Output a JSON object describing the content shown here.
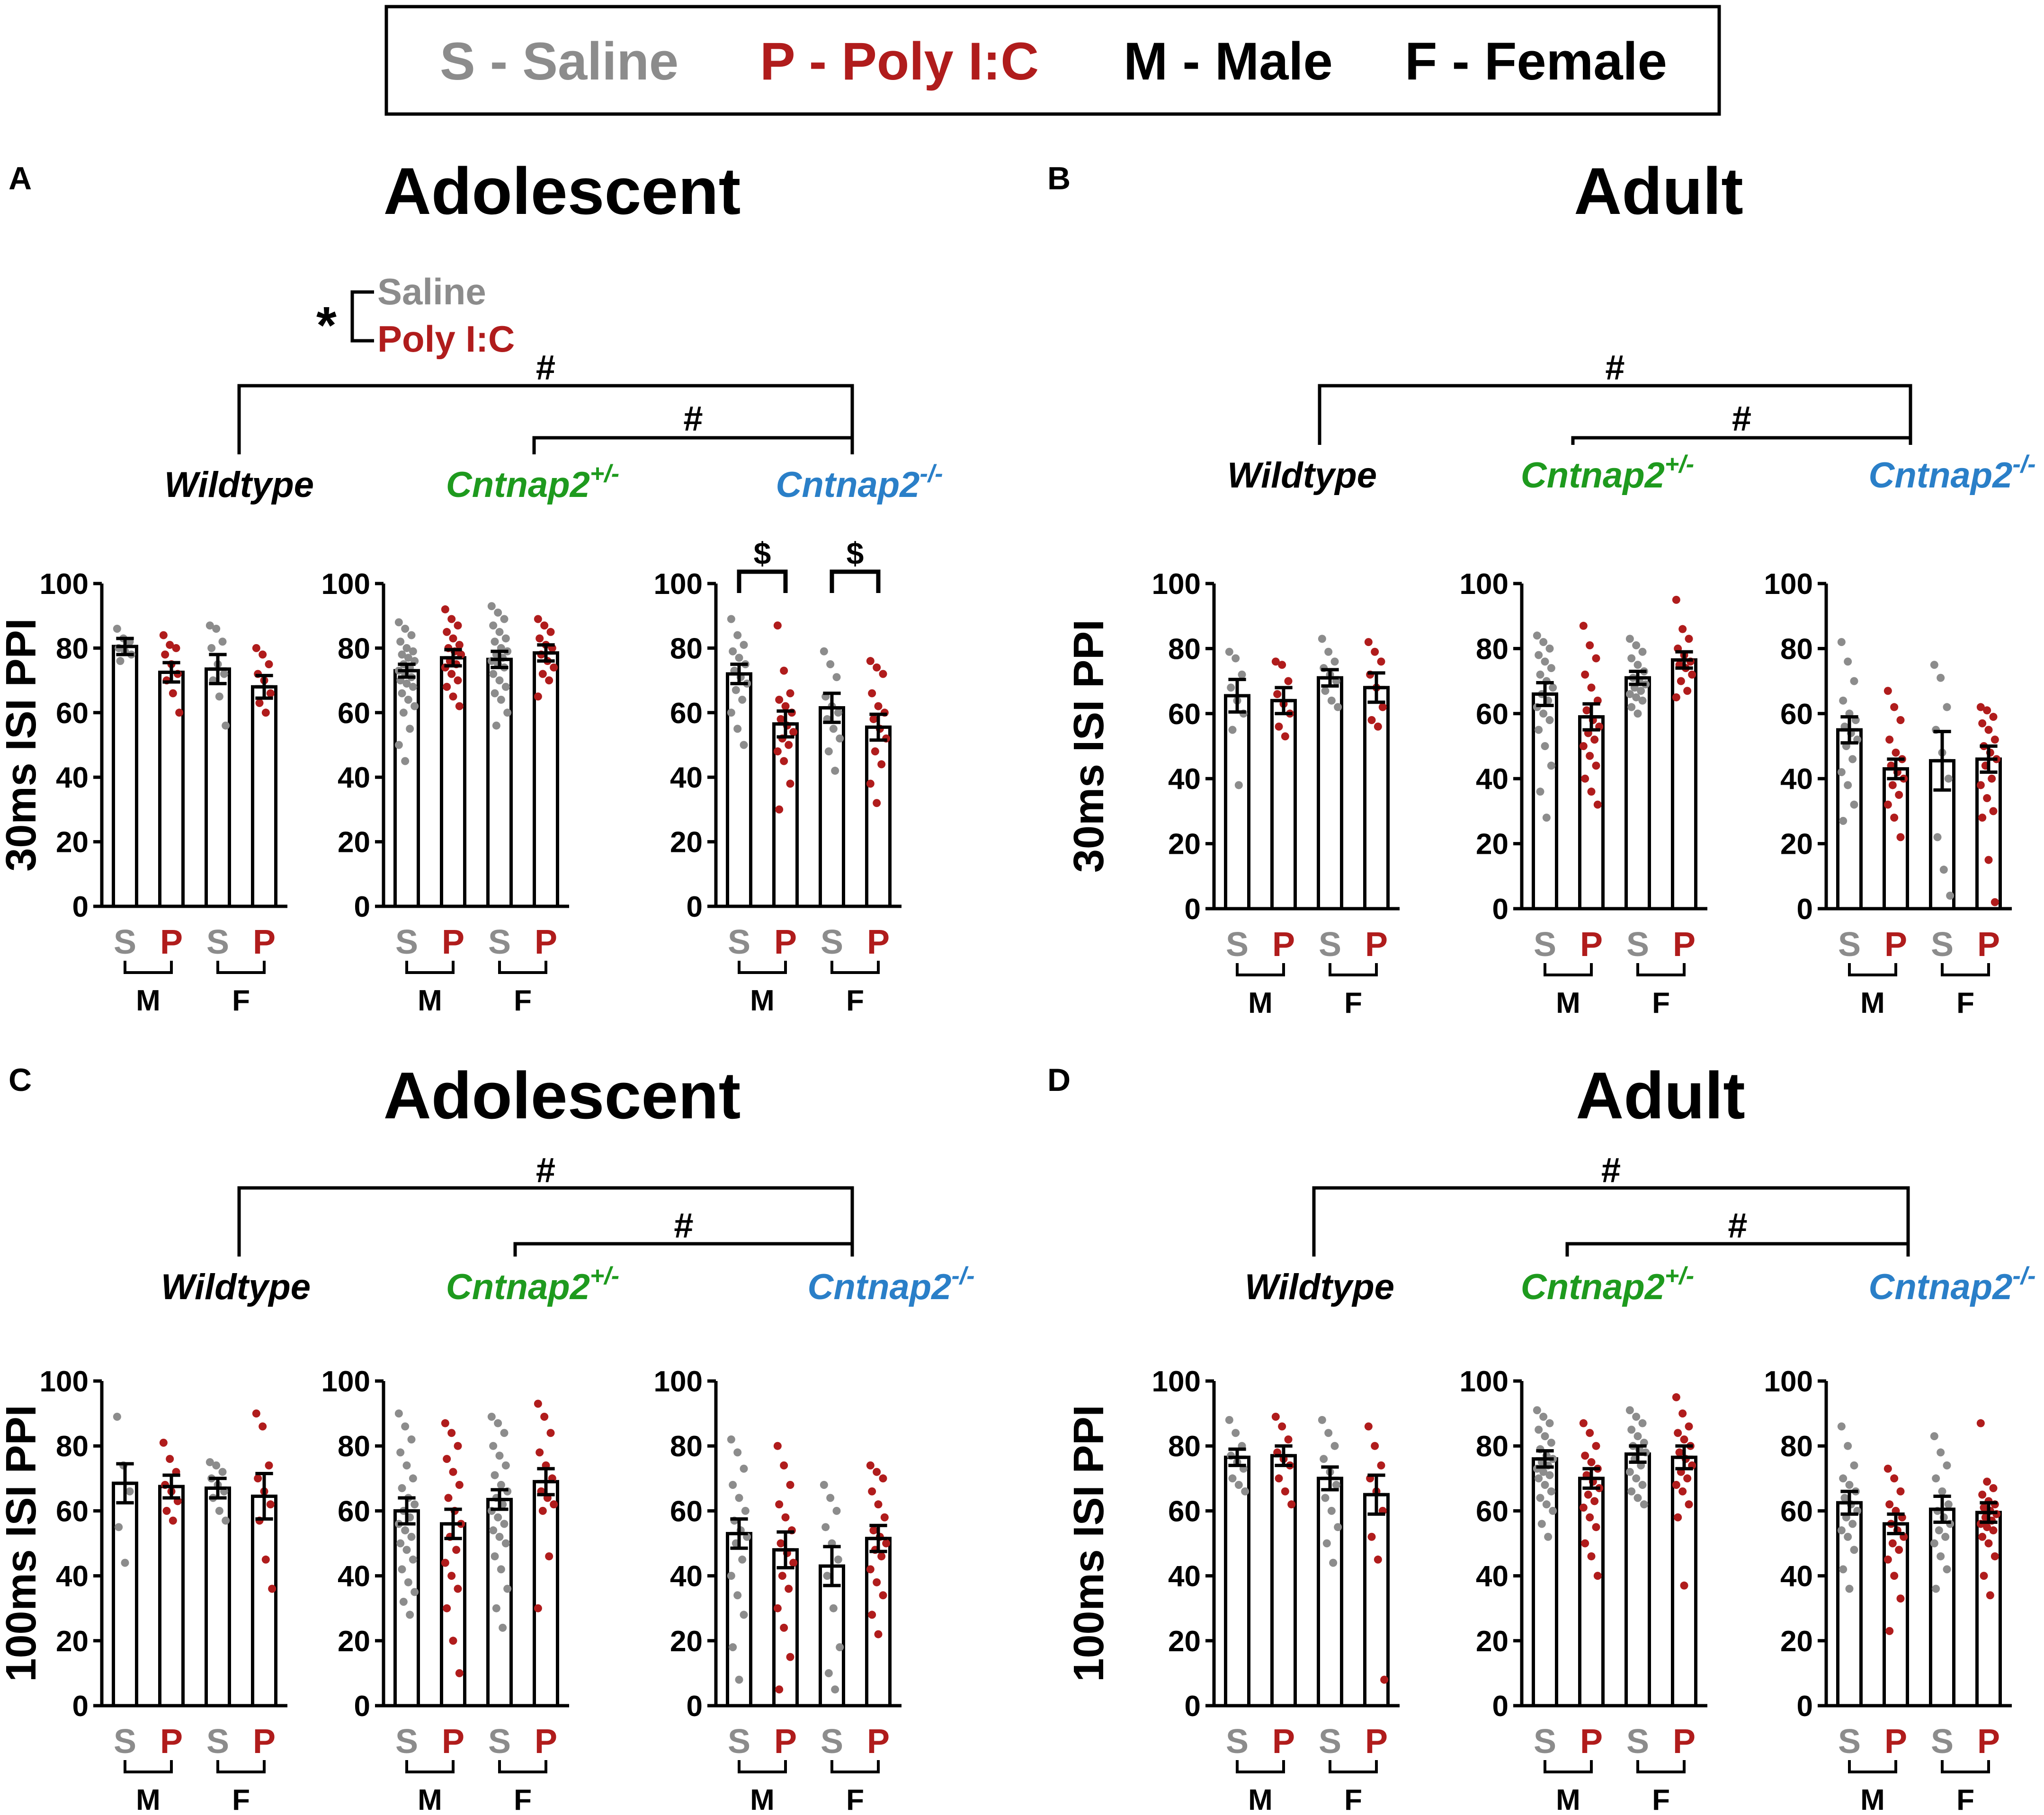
{
  "legend": {
    "saline": "S - Saline",
    "poly": "P - Poly I:C",
    "male": "M - Male",
    "female": "F - Female"
  },
  "colors": {
    "saline": "#8c8c8c",
    "poly": "#b01c1c",
    "wildtype": "#000000",
    "het": "#1e9a1e",
    "ko": "#2a7fc8",
    "ink": "#000000"
  },
  "labels": {
    "wildtype": "Wildtype",
    "cntnap2": "Cntnap2",
    "het_sup": "+/-",
    "ko_sup": "-/-",
    "s": "S",
    "p": "P",
    "m": "M",
    "f": "F",
    "hash": "#",
    "dollar": "$",
    "star": "*",
    "sig_saline": "Saline",
    "sig_poly": "Poly I:C"
  },
  "panels": [
    {
      "letter": "A",
      "title": "Adolescent",
      "ylabel": "30ms ISI PPI"
    },
    {
      "letter": "B",
      "title": "Adult",
      "ylabel": "30ms ISI PPI"
    },
    {
      "letter": "C",
      "title": "Adolescent",
      "ylabel": "100ms ISI  PPI"
    },
    {
      "letter": "D",
      "title": "Adult",
      "ylabel": "100ms ISI  PPI"
    }
  ],
  "chart_data": [
    {
      "panel": "A",
      "type": "bar",
      "genotype": "Wildtype",
      "categories": [
        "S (M)",
        "P (M)",
        "S (F)",
        "P (F)"
      ],
      "values": [
        80.5,
        72.5,
        73.5,
        68
      ],
      "sem": [
        2.5,
        3,
        4.5,
        3.5
      ],
      "points": [
        [
          86,
          83,
          82,
          80,
          79,
          78,
          76
        ],
        [
          84,
          81,
          80,
          78,
          75,
          72,
          70,
          66,
          60
        ],
        [
          87,
          86,
          82,
          80,
          75,
          72,
          70,
          65,
          56
        ],
        [
          80,
          78,
          75,
          72,
          70,
          66,
          63,
          60
        ]
      ],
      "ylim": [
        0,
        100
      ],
      "yticks": [
        0,
        20,
        40,
        60,
        80,
        100
      ]
    },
    {
      "panel": "A",
      "type": "bar",
      "genotype": "Cntnap2+/-",
      "categories": [
        "S (M)",
        "P (M)",
        "S (F)",
        "P (F)"
      ],
      "values": [
        73,
        77,
        76.5,
        78.5
      ],
      "sem": [
        2,
        2.5,
        2.5,
        2.5
      ],
      "points": [
        [
          88,
          86,
          84,
          82,
          80,
          79,
          78,
          77,
          76,
          75,
          74,
          73,
          72,
          71,
          70,
          69,
          68,
          66,
          64,
          62,
          60,
          55,
          50,
          45
        ],
        [
          92,
          89,
          87,
          85,
          83,
          81,
          80,
          79,
          78,
          76,
          75,
          74,
          72,
          70,
          68,
          65,
          62
        ],
        [
          93,
          91,
          89,
          87,
          85,
          83,
          82,
          80,
          79,
          78,
          77,
          76,
          75,
          74,
          72,
          70,
          68,
          66,
          64,
          60,
          56
        ],
        [
          89,
          87,
          85,
          83,
          81,
          80,
          78,
          76,
          74,
          72,
          70,
          65
        ]
      ],
      "ylim": [
        0,
        100
      ],
      "yticks": [
        0,
        20,
        40,
        60,
        80,
        100
      ]
    },
    {
      "panel": "A",
      "type": "bar",
      "genotype": "Cntnap2-/-",
      "categories": [
        "S (M)",
        "P (M)",
        "S (F)",
        "P (F)"
      ],
      "values": [
        72,
        56.5,
        61.5,
        55.5
      ],
      "sem": [
        3,
        4,
        4.5,
        4
      ],
      "points": [
        [
          89,
          84,
          81,
          79,
          77,
          75,
          73,
          71,
          69,
          67,
          64,
          60,
          55,
          50
        ],
        [
          87,
          73,
          66,
          64,
          62,
          60,
          58,
          56,
          54,
          52,
          50,
          48,
          45,
          38,
          30
        ],
        [
          79,
          75,
          71,
          65,
          62,
          60,
          58,
          55,
          52,
          48,
          42
        ],
        [
          76,
          74,
          72,
          66,
          62,
          60,
          58,
          55,
          52,
          48,
          44,
          38,
          32
        ]
      ],
      "ylim": [
        0,
        100
      ],
      "yticks": [
        0,
        20,
        40,
        60,
        80,
        100
      ]
    },
    {
      "panel": "B",
      "type": "bar",
      "genotype": "Wildtype",
      "categories": [
        "S (M)",
        "P (M)",
        "S (F)",
        "P (F)"
      ],
      "values": [
        65.5,
        64,
        71,
        68
      ],
      "sem": [
        5,
        4,
        2.5,
        4.5
      ],
      "points": [
        [
          79,
          77,
          72,
          68,
          64,
          60,
          55,
          38
        ],
        [
          76,
          75,
          70,
          66,
          63,
          60,
          56,
          53
        ],
        [
          83,
          79,
          76,
          74,
          72,
          70,
          67,
          64,
          62
        ],
        [
          82,
          79,
          76,
          72,
          68,
          62,
          58,
          56
        ]
      ],
      "ylim": [
        0,
        100
      ],
      "yticks": [
        0,
        20,
        40,
        60,
        80,
        100
      ]
    },
    {
      "panel": "B",
      "type": "bar",
      "genotype": "Cntnap2+/-",
      "categories": [
        "S (M)",
        "P (M)",
        "S (F)",
        "P (F)"
      ],
      "values": [
        66,
        59,
        71,
        76.5
      ],
      "sem": [
        3.5,
        4,
        2,
        2.5
      ],
      "points": [
        [
          84,
          82,
          80,
          78,
          76,
          74,
          72,
          70,
          68,
          66,
          64,
          62,
          60,
          58,
          55,
          50,
          44,
          36,
          28
        ],
        [
          87,
          81,
          77,
          72,
          68,
          64,
          61,
          58,
          56,
          54,
          52,
          50,
          47,
          44,
          40,
          36,
          32
        ],
        [
          83,
          81,
          79,
          77,
          75,
          73,
          71,
          70,
          69,
          68,
          67,
          66,
          65,
          64,
          62,
          60
        ],
        [
          95,
          86,
          83,
          80,
          78,
          76,
          75,
          74,
          72,
          70,
          67,
          65
        ]
      ],
      "ylim": [
        0,
        100
      ],
      "yticks": [
        0,
        20,
        40,
        60,
        80,
        100
      ]
    },
    {
      "panel": "B",
      "type": "bar",
      "genotype": "Cntnap2-/-",
      "categories": [
        "S (M)",
        "P (M)",
        "S (F)",
        "P (F)"
      ],
      "values": [
        55,
        43,
        45.5,
        46
      ],
      "sem": [
        4,
        3,
        9,
        4
      ],
      "points": [
        [
          82,
          76,
          70,
          64,
          60,
          58,
          56,
          54,
          52,
          50,
          46,
          42,
          38,
          32,
          27
        ],
        [
          67,
          62,
          58,
          52,
          48,
          46,
          44,
          42,
          40,
          38,
          35,
          32,
          28,
          22
        ],
        [
          75,
          71,
          62,
          55,
          48,
          40,
          22,
          12,
          4
        ],
        [
          62,
          61,
          59,
          57,
          55,
          52,
          50,
          48,
          46,
          44,
          40,
          38,
          34,
          30,
          28,
          15,
          2
        ]
      ],
      "ylim": [
        0,
        100
      ],
      "yticks": [
        0,
        20,
        40,
        60,
        80,
        100
      ]
    },
    {
      "panel": "C",
      "type": "bar",
      "genotype": "Wildtype",
      "categories": [
        "S (M)",
        "P (M)",
        "S (F)",
        "P (F)"
      ],
      "values": [
        68.5,
        67.5,
        67,
        64.5
      ],
      "sem": [
        6,
        3.5,
        3,
        7
      ],
      "points": [
        [
          89,
          74,
          66,
          55,
          44
        ],
        [
          81,
          76,
          72,
          68,
          66,
          63,
          60,
          57
        ],
        [
          75,
          74,
          72,
          70,
          68,
          66,
          64,
          60,
          57
        ],
        [
          90,
          86,
          74,
          70,
          66,
          62,
          57,
          45,
          36
        ]
      ],
      "ylim": [
        0,
        100
      ],
      "yticks": [
        0,
        20,
        40,
        60,
        80,
        100
      ]
    },
    {
      "panel": "C",
      "type": "bar",
      "genotype": "Cntnap2+/-",
      "categories": [
        "S (M)",
        "P (M)",
        "S (F)",
        "P (F)"
      ],
      "values": [
        60,
        56,
        63.5,
        69
      ],
      "sem": [
        4,
        4.5,
        3,
        4
      ],
      "points": [
        [
          90,
          86,
          82,
          78,
          74,
          70,
          67,
          64,
          62,
          60,
          58,
          56,
          54,
          52,
          50,
          48,
          45,
          42,
          38,
          35,
          32,
          28
        ],
        [
          87,
          84,
          80,
          76,
          72,
          68,
          64,
          60,
          56,
          52,
          48,
          44,
          40,
          36,
          30,
          20,
          10
        ],
        [
          89,
          87,
          84,
          80,
          77,
          74,
          71,
          68,
          66,
          64,
          62,
          60,
          58,
          56,
          54,
          52,
          50,
          46,
          42,
          36,
          30,
          24
        ],
        [
          93,
          89,
          84,
          78,
          74,
          70,
          66,
          64,
          62,
          60,
          46,
          30
        ]
      ],
      "ylim": [
        0,
        100
      ],
      "yticks": [
        0,
        20,
        40,
        60,
        80,
        100
      ]
    },
    {
      "panel": "C",
      "type": "bar",
      "genotype": "Cntnap2-/-",
      "categories": [
        "S (M)",
        "P (M)",
        "S (F)",
        "P (F)"
      ],
      "values": [
        53,
        48,
        43,
        51.5
      ],
      "sem": [
        4.5,
        5.5,
        6,
        4
      ],
      "points": [
        [
          82,
          78,
          73,
          68,
          64,
          60,
          57,
          54,
          52,
          50,
          45,
          40,
          34,
          28,
          18,
          8
        ],
        [
          80,
          74,
          68,
          62,
          58,
          54,
          50,
          47,
          44,
          40,
          36,
          30,
          24,
          15,
          5
        ],
        [
          68,
          64,
          60,
          55,
          50,
          45,
          40,
          30,
          18,
          10,
          5
        ],
        [
          74,
          72,
          70,
          66,
          62,
          58,
          54,
          52,
          50,
          48,
          46,
          42,
          38,
          34,
          28,
          22
        ]
      ],
      "ylim": [
        0,
        100
      ],
      "yticks": [
        0,
        20,
        40,
        60,
        80,
        100
      ]
    },
    {
      "panel": "D",
      "type": "bar",
      "genotype": "Wildtype",
      "categories": [
        "S (M)",
        "P (M)",
        "S (F)",
        "P (F)"
      ],
      "values": [
        76.5,
        77,
        70,
        65
      ],
      "sem": [
        2.5,
        3,
        3.5,
        6
      ],
      "points": [
        [
          88,
          84,
          80,
          77,
          75,
          73,
          70,
          68,
          66
        ],
        [
          89,
          86,
          82,
          78,
          76,
          74,
          70,
          66,
          62
        ],
        [
          88,
          84,
          80,
          76,
          72,
          68,
          64,
          60,
          55,
          50,
          44
        ],
        [
          86,
          80,
          74,
          70,
          66,
          60,
          52,
          45,
          8
        ]
      ],
      "ylim": [
        0,
        100
      ],
      "yticks": [
        0,
        20,
        40,
        60,
        80,
        100
      ]
    },
    {
      "panel": "D",
      "type": "bar",
      "genotype": "Cntnap2+/-",
      "categories": [
        "S (M)",
        "P (M)",
        "S (F)",
        "P (F)"
      ],
      "values": [
        76,
        70,
        77.5,
        76.5
      ],
      "sem": [
        2.5,
        3,
        2.5,
        3.5
      ],
      "points": [
        [
          91,
          89,
          87,
          85,
          83,
          81,
          79,
          77,
          76,
          75,
          74,
          73,
          72,
          71,
          70,
          68,
          66,
          64,
          62,
          60,
          56,
          52
        ],
        [
          87,
          84,
          80,
          77,
          75,
          73,
          71,
          69,
          67,
          65,
          63,
          61,
          58,
          55,
          50,
          46,
          40
        ],
        [
          91,
          89,
          87,
          85,
          83,
          81,
          80,
          79,
          78,
          76,
          74,
          72,
          70,
          68,
          66,
          64,
          62
        ],
        [
          95,
          90,
          86,
          84,
          82,
          80,
          78,
          76,
          74,
          72,
          70,
          68,
          66,
          62,
          58,
          37
        ]
      ],
      "ylim": [
        0,
        100
      ],
      "yticks": [
        0,
        20,
        40,
        60,
        80,
        100
      ]
    },
    {
      "panel": "D",
      "type": "bar",
      "genotype": "Cntnap2-/-",
      "categories": [
        "S (M)",
        "P (M)",
        "S (F)",
        "P (F)"
      ],
      "values": [
        62.5,
        56,
        60.5,
        59.5
      ],
      "sem": [
        3.5,
        3,
        4,
        3
      ],
      "points": [
        [
          86,
          80,
          74,
          70,
          68,
          66,
          64,
          62,
          60,
          58,
          56,
          54,
          52,
          48,
          42,
          36
        ],
        [
          73,
          70,
          66,
          62,
          60,
          58,
          56,
          54,
          52,
          50,
          48,
          45,
          40,
          33,
          23
        ],
        [
          83,
          78,
          74,
          70,
          66,
          62,
          60,
          58,
          56,
          54,
          52,
          50,
          46,
          42,
          36
        ],
        [
          87,
          69,
          67,
          65,
          63,
          62,
          61,
          60,
          59,
          58,
          57,
          56,
          55,
          54,
          52,
          50,
          46,
          40,
          34
        ]
      ],
      "ylim": [
        0,
        100
      ],
      "yticks": [
        0,
        20,
        40,
        60,
        80,
        100
      ]
    }
  ]
}
